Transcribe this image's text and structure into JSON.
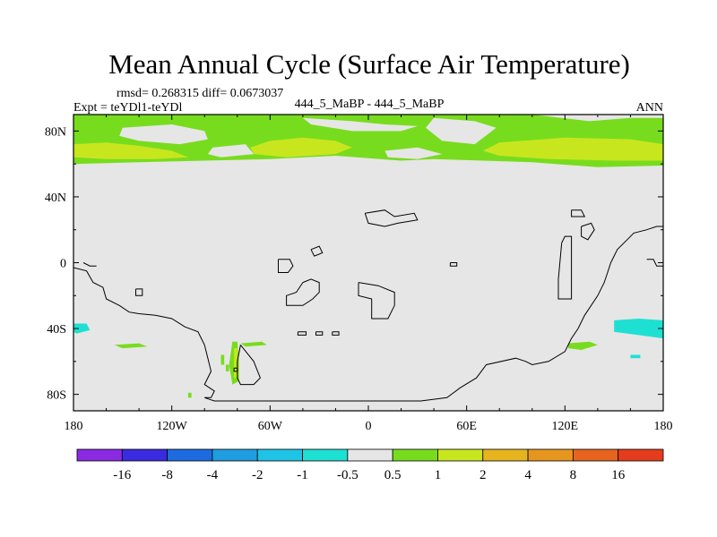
{
  "chart_data": {
    "type": "heatmap",
    "title": "Mean Annual Cycle (Surface Air Temperature)",
    "stats": "rmsd= 0.268315 diff= 0.0673037",
    "left_label": "Expt = teYDl1-teYDl",
    "center_label": "444_5_MaBP - 444_5_MaBP",
    "right_label": "ANN",
    "xlim": [
      -180,
      180
    ],
    "ylim": [
      -90,
      90
    ],
    "x_ticks": [
      {
        "value": -180,
        "label": "180"
      },
      {
        "value": -120,
        "label": "120W"
      },
      {
        "value": -60,
        "label": "60W"
      },
      {
        "value": 0,
        "label": "0"
      },
      {
        "value": 60,
        "label": "60E"
      },
      {
        "value": 120,
        "label": "120E"
      },
      {
        "value": 180,
        "label": "180"
      }
    ],
    "y_ticks": [
      {
        "value": 80,
        "label": "80N"
      },
      {
        "value": 40,
        "label": "40N"
      },
      {
        "value": 0,
        "label": "0"
      },
      {
        "value": -40,
        "label": "40S"
      },
      {
        "value": -80,
        "label": "80S"
      }
    ],
    "colorbar": {
      "colors": [
        "#8a2be2",
        "#3b2be0",
        "#1e6be0",
        "#1e9ee0",
        "#1ec3e6",
        "#1ee0d2",
        "#e6e6e6",
        "#78dc1e",
        "#c8e61e",
        "#e6b41e",
        "#e6961e",
        "#e6641e",
        "#e63c1e"
      ],
      "labels": [
        "-16",
        "-8",
        "-4",
        "-2",
        "-1",
        "-0.5",
        "0.5",
        "1",
        "2",
        "4",
        "8",
        "16"
      ]
    },
    "background_color": "#e6e6e6",
    "regions": [
      {
        "name": "arctic-band",
        "level": "0.5 to 1",
        "color": "#78dc1e",
        "points": [
          [
            -180,
            90
          ],
          [
            180,
            90
          ],
          [
            180,
            59
          ],
          [
            140,
            58
          ],
          [
            100,
            61
          ],
          [
            40,
            63
          ],
          [
            20,
            62
          ],
          [
            -20,
            65
          ],
          [
            -60,
            63
          ],
          [
            -100,
            62
          ],
          [
            -140,
            61
          ],
          [
            -180,
            60
          ]
        ]
      },
      {
        "name": "north-pacific-band-core",
        "level": "1 to 2",
        "color": "#c8e61e",
        "points": [
          [
            -180,
            72
          ],
          [
            -160,
            73
          ],
          [
            -140,
            71
          ],
          [
            -120,
            68
          ],
          [
            -110,
            64
          ],
          [
            -130,
            63
          ],
          [
            -160,
            63
          ],
          [
            -180,
            64
          ]
        ]
      },
      {
        "name": "north-america-core",
        "level": "1 to 2",
        "color": "#c8e61e",
        "points": [
          [
            -60,
            74
          ],
          [
            -40,
            76
          ],
          [
            -20,
            74
          ],
          [
            -10,
            70
          ],
          [
            -20,
            66
          ],
          [
            -50,
            64
          ],
          [
            -70,
            66
          ],
          [
            -72,
            70
          ]
        ]
      },
      {
        "name": "eurasia-core",
        "level": "1 to 2",
        "color": "#c8e61e",
        "points": [
          [
            80,
            73
          ],
          [
            120,
            76
          ],
          [
            160,
            75
          ],
          [
            180,
            72
          ],
          [
            180,
            62
          ],
          [
            150,
            62
          ],
          [
            110,
            63
          ],
          [
            80,
            65
          ],
          [
            70,
            68
          ]
        ]
      },
      {
        "name": "hole-1",
        "level": "-0.5 to 0.5",
        "color": "#e6e6e6",
        "points": [
          [
            -150,
            82
          ],
          [
            -120,
            84
          ],
          [
            -100,
            80
          ],
          [
            -98,
            75
          ],
          [
            -115,
            72
          ],
          [
            -140,
            74
          ],
          [
            -152,
            77
          ]
        ]
      },
      {
        "name": "hole-2",
        "level": "-0.5 to 0.5",
        "color": "#e6e6e6",
        "points": [
          [
            -95,
            70
          ],
          [
            -75,
            72
          ],
          [
            -70,
            66
          ],
          [
            -90,
            64
          ],
          [
            -98,
            66
          ]
        ]
      },
      {
        "name": "hole-3",
        "level": "-0.5 to 0.5",
        "color": "#e6e6e6",
        "points": [
          [
            -40,
            88
          ],
          [
            -10,
            86
          ],
          [
            10,
            84
          ],
          [
            30,
            83
          ],
          [
            20,
            80
          ],
          [
            -10,
            80
          ],
          [
            -35,
            84
          ]
        ]
      },
      {
        "name": "hole-4",
        "level": "-0.5 to 0.5",
        "color": "#e6e6e6",
        "points": [
          [
            40,
            88
          ],
          [
            65,
            86
          ],
          [
            78,
            82
          ],
          [
            65,
            72
          ],
          [
            45,
            74
          ],
          [
            35,
            82
          ]
        ]
      },
      {
        "name": "hole-5",
        "level": "-0.5 to 0.5",
        "color": "#e6e6e6",
        "points": [
          [
            10,
            68
          ],
          [
            30,
            70
          ],
          [
            45,
            66
          ],
          [
            30,
            63
          ],
          [
            12,
            64
          ]
        ]
      },
      {
        "name": "hole-6",
        "level": "-0.5 to 0.5",
        "color": "#e6e6e6",
        "points": [
          [
            100,
            90
          ],
          [
            135,
            86
          ],
          [
            160,
            88
          ],
          [
            180,
            88
          ],
          [
            180,
            90
          ]
        ]
      },
      {
        "name": "hole-7",
        "level": "-0.5 to 0.5",
        "color": "#e6e6e6",
        "points": [
          [
            58,
            85
          ],
          [
            65,
            85
          ],
          [
            65,
            82
          ],
          [
            58,
            82
          ]
        ]
      },
      {
        "name": "south-america-tip",
        "level": "0.5 to 1",
        "color": "#78dc1e",
        "points": [
          [
            -83,
            -48
          ],
          [
            -80,
            -48
          ],
          [
            -79,
            -60
          ],
          [
            -79,
            -72
          ],
          [
            -83,
            -74
          ],
          [
            -85,
            -62
          ]
        ]
      },
      {
        "name": "south-america-tip-core",
        "level": "1 to 2",
        "color": "#c8e61e",
        "points": [
          [
            -82,
            -52
          ],
          [
            -80,
            -52
          ],
          [
            -80,
            -70
          ],
          [
            -82,
            -70
          ]
        ]
      },
      {
        "name": "speck-1",
        "level": "0.5 to 1",
        "color": "#78dc1e",
        "points": [
          [
            -90,
            -56
          ],
          [
            -88,
            -56
          ],
          [
            -88,
            -62
          ],
          [
            -90,
            -62
          ]
        ]
      },
      {
        "name": "speck-2",
        "level": "0.5 to 1",
        "color": "#78dc1e",
        "points": [
          [
            -87,
            -62
          ],
          [
            -85,
            -62
          ],
          [
            -85,
            -66
          ],
          [
            -87,
            -66
          ]
        ]
      },
      {
        "name": "speck-3",
        "level": "0.5 to 1",
        "color": "#78dc1e",
        "points": [
          [
            -110,
            -79
          ],
          [
            -108,
            -79
          ],
          [
            -108,
            -82
          ],
          [
            -110,
            -82
          ]
        ]
      },
      {
        "name": "south-pacific-streak",
        "level": "0.5 to 1",
        "color": "#78dc1e",
        "points": [
          [
            -155,
            -50
          ],
          [
            -140,
            -49
          ],
          [
            -135,
            -51
          ],
          [
            -150,
            -52
          ]
        ]
      },
      {
        "name": "south-atlantic-streak",
        "level": "0.5 to 1",
        "color": "#78dc1e",
        "points": [
          [
            -78,
            -49
          ],
          [
            -65,
            -48
          ],
          [
            -62,
            -50
          ],
          [
            -75,
            -51
          ]
        ]
      },
      {
        "name": "indian-ocean-streak",
        "level": "0.5 to 1",
        "color": "#78dc1e",
        "points": [
          [
            122,
            -49
          ],
          [
            135,
            -48
          ],
          [
            140,
            -50
          ],
          [
            130,
            -53
          ],
          [
            122,
            -52
          ]
        ]
      },
      {
        "name": "southwest-pacific-cool",
        "level": "-1 to -0.5",
        "color": "#1ee0d2",
        "points": [
          [
            -180,
            -37
          ],
          [
            -172,
            -37
          ],
          [
            -170,
            -41
          ],
          [
            -178,
            -43
          ],
          [
            -180,
            -42
          ]
        ]
      },
      {
        "name": "southeast-pacific-cool",
        "level": "-1 to -0.5",
        "color": "#1ee0d2",
        "points": [
          [
            150,
            -35
          ],
          [
            165,
            -34
          ],
          [
            180,
            -35
          ],
          [
            180,
            -46
          ],
          [
            165,
            -44
          ],
          [
            150,
            -42
          ]
        ]
      },
      {
        "name": "western-pacific-cool",
        "level": "-1 to -0.5",
        "color": "#1ee0d2",
        "points": [
          [
            160,
            -56
          ],
          [
            166,
            -56
          ],
          [
            166,
            -58
          ],
          [
            160,
            -58
          ]
        ]
      }
    ],
    "coastlines": [
      [
        [
          -180,
          -3
        ],
        [
          -172,
          -5
        ],
        [
          -168,
          -12
        ],
        [
          -162,
          -15
        ],
        [
          -160,
          -22
        ],
        [
          -152,
          -26
        ],
        [
          -146,
          -30
        ],
        [
          -140,
          -31
        ],
        [
          -130,
          -32
        ],
        [
          -120,
          -34
        ],
        [
          -112,
          -39
        ],
        [
          -104,
          -42
        ],
        [
          -100,
          -50
        ],
        [
          -98,
          -58
        ],
        [
          -96,
          -66
        ],
        [
          -100,
          -74
        ],
        [
          -94,
          -78
        ],
        [
          -96,
          -82
        ],
        [
          -100,
          -82
        ],
        [
          -94,
          -84
        ],
        [
          -74,
          -84
        ],
        [
          -40,
          -84
        ],
        [
          0,
          -84
        ],
        [
          32,
          -84
        ],
        [
          48,
          -82
        ],
        [
          56,
          -76
        ],
        [
          66,
          -70
        ],
        [
          72,
          -62
        ],
        [
          90,
          -58
        ],
        [
          96,
          -60
        ],
        [
          100,
          -62
        ],
        [
          110,
          -60
        ],
        [
          120,
          -54
        ],
        [
          124,
          -46
        ],
        [
          128,
          -40
        ],
        [
          132,
          -32
        ],
        [
          140,
          -20
        ],
        [
          144,
          -12
        ],
        [
          146,
          -6
        ],
        [
          148,
          0
        ],
        [
          152,
          8
        ],
        [
          158,
          14
        ],
        [
          162,
          18
        ],
        [
          170,
          20
        ],
        [
          176,
          22
        ],
        [
          180,
          22
        ]
      ],
      [
        [
          -78,
          -50
        ],
        [
          -74,
          -55
        ],
        [
          -70,
          -60
        ],
        [
          -66,
          -70
        ],
        [
          -70,
          -74
        ],
        [
          -78,
          -74
        ],
        [
          -80,
          -70
        ],
        [
          -80,
          -60
        ],
        [
          -78,
          -50
        ]
      ],
      [
        [
          -82,
          -64
        ],
        [
          -80,
          -64
        ],
        [
          -80,
          -66
        ],
        [
          -82,
          -66
        ],
        [
          -82,
          -64
        ]
      ],
      [
        [
          170,
          2
        ],
        [
          174,
          2
        ],
        [
          176,
          -2
        ],
        [
          180,
          -2
        ]
      ],
      [
        [
          -174,
          0
        ],
        [
          -170,
          -2
        ],
        [
          -166,
          -2
        ]
      ],
      [
        [
          -55,
          2
        ],
        [
          -48,
          2
        ],
        [
          -46,
          -2
        ],
        [
          -49,
          -6
        ],
        [
          -55,
          -6
        ],
        [
          -55,
          2
        ]
      ],
      [
        [
          -40,
          -12
        ],
        [
          -35,
          -10
        ],
        [
          -30,
          -12
        ],
        [
          -30,
          -18
        ],
        [
          -34,
          -22
        ],
        [
          -40,
          -26
        ],
        [
          -50,
          -26
        ],
        [
          -50,
          -20
        ],
        [
          -44,
          -18
        ],
        [
          -40,
          -12
        ]
      ],
      [
        [
          -35,
          8
        ],
        [
          -30,
          10
        ],
        [
          -28,
          6
        ],
        [
          -33,
          4
        ],
        [
          -35,
          8
        ]
      ],
      [
        [
          -6,
          -12
        ],
        [
          6,
          -14
        ],
        [
          16,
          -18
        ],
        [
          16,
          -26
        ],
        [
          12,
          -34
        ],
        [
          2,
          -34
        ],
        [
          2,
          -22
        ],
        [
          -6,
          -20
        ],
        [
          -6,
          -12
        ]
      ],
      [
        [
          -2,
          30
        ],
        [
          10,
          32
        ],
        [
          16,
          28
        ],
        [
          28,
          30
        ],
        [
          30,
          26
        ],
        [
          18,
          24
        ],
        [
          10,
          22
        ],
        [
          0,
          24
        ],
        [
          -2,
          30
        ]
      ],
      [
        [
          124,
          32
        ],
        [
          130,
          32
        ],
        [
          132,
          28
        ],
        [
          124,
          28
        ],
        [
          124,
          32
        ]
      ],
      [
        [
          130,
          22
        ],
        [
          136,
          24
        ],
        [
          138,
          20
        ],
        [
          134,
          14
        ],
        [
          130,
          16
        ],
        [
          130,
          22
        ]
      ],
      [
        [
          118,
          12
        ],
        [
          120,
          16
        ],
        [
          124,
          16
        ],
        [
          124,
          0
        ],
        [
          124,
          -14
        ],
        [
          124,
          -22
        ],
        [
          116,
          -22
        ],
        [
          116,
          -10
        ],
        [
          118,
          12
        ]
      ],
      [
        [
          50,
          0
        ],
        [
          54,
          0
        ],
        [
          54,
          -2
        ],
        [
          50,
          -2
        ],
        [
          50,
          0
        ]
      ],
      [
        [
          -142,
          -16
        ],
        [
          -138,
          -16
        ],
        [
          -138,
          -20
        ],
        [
          -142,
          -20
        ],
        [
          -142,
          -16
        ]
      ],
      [
        [
          -43,
          -42
        ],
        [
          -38,
          -42
        ],
        [
          -38,
          -44
        ],
        [
          -43,
          -44
        ],
        [
          -43,
          -42
        ]
      ],
      [
        [
          -32,
          -42
        ],
        [
          -28,
          -42
        ],
        [
          -28,
          -44
        ],
        [
          -32,
          -44
        ],
        [
          -32,
          -42
        ]
      ],
      [
        [
          -22,
          -42
        ],
        [
          -18,
          -42
        ],
        [
          -18,
          -44
        ],
        [
          -22,
          -44
        ],
        [
          -22,
          -42
        ]
      ]
    ]
  }
}
